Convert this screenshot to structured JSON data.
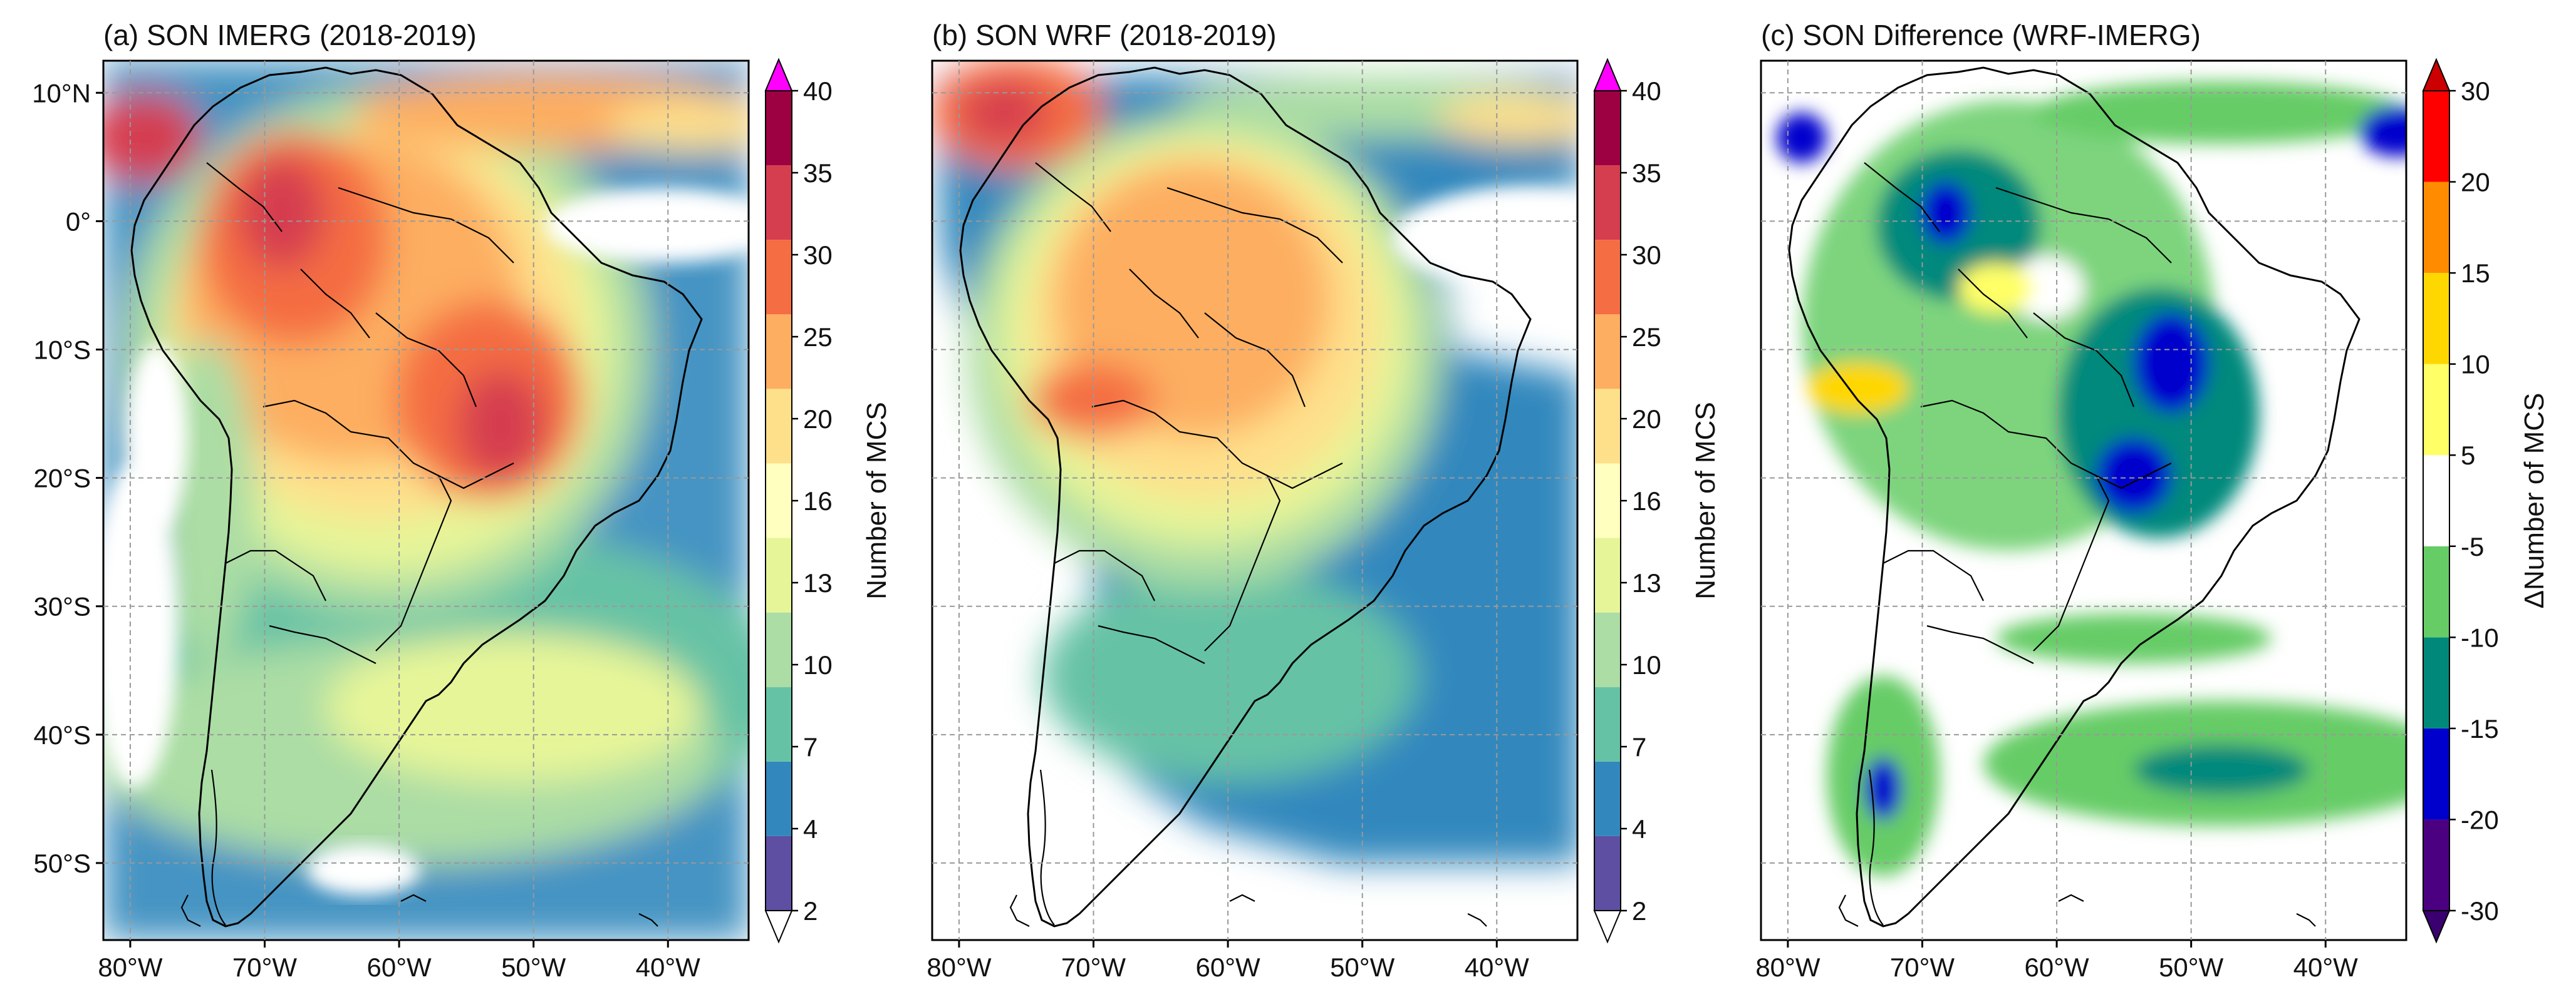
{
  "panels": [
    {
      "title": "(a) SON IMERG (2018-2019)",
      "kind": "count",
      "colorbar_label": "Number of MCS"
    },
    {
      "title": "(b) SON WRF (2018-2019)",
      "kind": "count",
      "colorbar_label": "Number of MCS"
    },
    {
      "title": "(c) SON Difference (WRF-IMERG)",
      "kind": "diff",
      "colorbar_label": "ΔNumber of MCS"
    }
  ],
  "lat_labels": [
    "10°N",
    "0°",
    "10°S",
    "20°S",
    "30°S",
    "40°S",
    "50°S"
  ],
  "lat_values": [
    10,
    0,
    -10,
    -20,
    -30,
    -40,
    -50
  ],
  "lon_labels": [
    "80°W",
    "70°W",
    "60°W",
    "50°W",
    "40°W"
  ],
  "lon_values": [
    -80,
    -70,
    -60,
    -50,
    -40
  ],
  "extent": {
    "lon_min": -82,
    "lon_max": -34,
    "lat_min": -56,
    "lat_max": 12.5
  },
  "count_colorbar": {
    "ticks": [
      "2",
      "4",
      "7",
      "10",
      "13",
      "16",
      "20",
      "25",
      "30",
      "35",
      "40"
    ],
    "colors": [
      "#5e4fa2",
      "#3288bd",
      "#66c2a5",
      "#abdda4",
      "#e6f598",
      "#ffffbf",
      "#fee08b",
      "#fdae61",
      "#f46d43",
      "#d53e4f",
      "#9e0142"
    ],
    "over_color": "#ff00ff",
    "under_color": "#ffffff"
  },
  "diff_colorbar": {
    "ticks": [
      "-30",
      "-20",
      "-15",
      "-10",
      "-5",
      "5",
      "10",
      "15",
      "20",
      "30"
    ],
    "colors": [
      "#4b0082",
      "#0000cd",
      "#00897b",
      "#66cc66",
      "#ffffff",
      "#ffff66",
      "#ffd700",
      "#ff8c00",
      "#ff0000"
    ],
    "over_color": "#cc0000",
    "under_color": "#3a006f"
  }
}
